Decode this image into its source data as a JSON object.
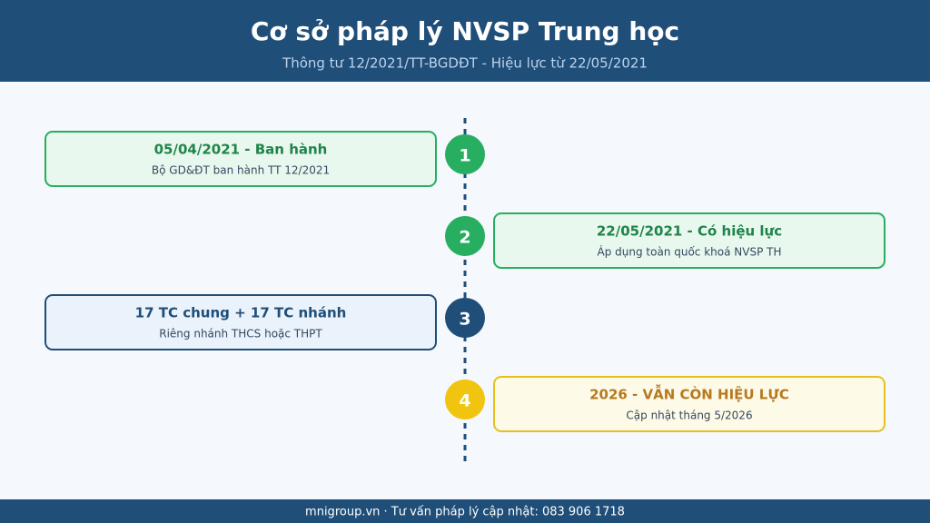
{
  "header": {
    "title": "Cơ sở pháp lý NVSP Trung học",
    "subtitle": "Thông tư 12/2021/TT-BGDĐT - Hiệu lực từ 22/05/2021"
  },
  "timeline": [
    {
      "number": "1",
      "title": "05/04/2021 - Ban hành",
      "description": "Bộ GD&ĐT ban hành TT 12/2021"
    },
    {
      "number": "2",
      "title": "22/05/2021 - Có hiệu lực",
      "description": "Áp dụng toàn quốc khoá NVSP TH"
    },
    {
      "number": "3",
      "title": "17 TC chung + 17 TC nhánh",
      "description": "Riêng nhánh THCS hoặc THPT"
    },
    {
      "number": "4",
      "title": "2026 - VẪN CÒN HIỆU LỰC",
      "description": "Cập nhật tháng 5/2026"
    }
  ],
  "footer": {
    "text": "mnigroup.vn · Tư vấn pháp lý cập nhật: 083 906 1718"
  }
}
